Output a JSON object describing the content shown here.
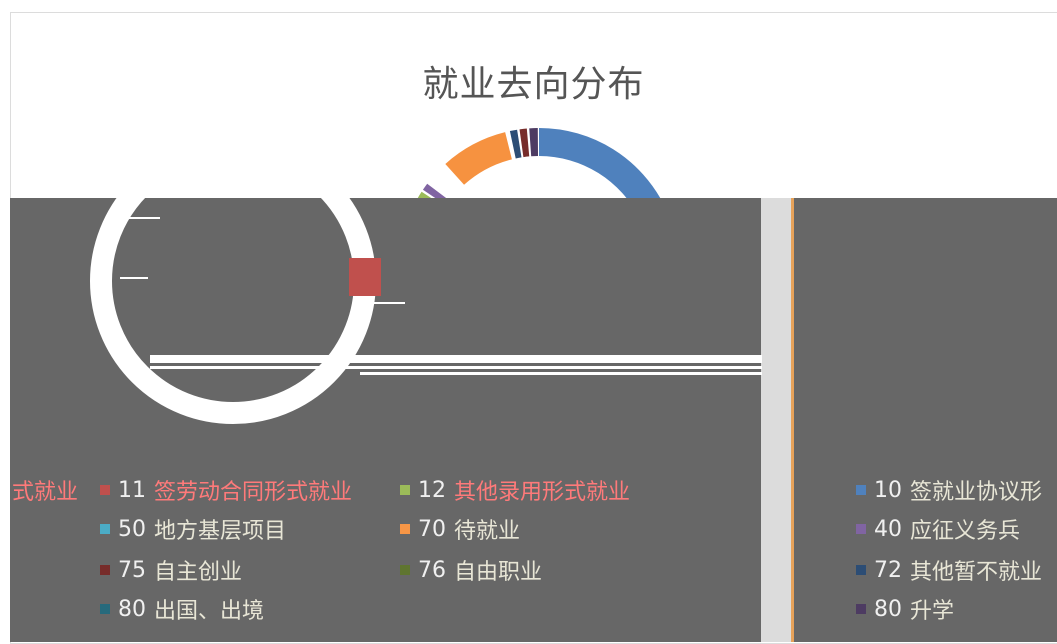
{
  "window": {
    "title": "就业去向分布"
  },
  "colors": {
    "background_band": "#676767",
    "card_border": "#dcdcdc",
    "accent_orange": "#f69240",
    "accent_blue": "#4f81bd",
    "accent_red": "#c0504d"
  },
  "chart_data": {
    "type": "pie",
    "title": "就业去向分布",
    "donut": true,
    "series": [
      {
        "name": "签就业协议形式就业",
        "count": "10",
        "color": "#4f81bd"
      },
      {
        "name": "签劳动合同形式就业",
        "count": "11",
        "color": "#c0504d"
      },
      {
        "name": "其他录用形式就业",
        "count": "12",
        "color": "#9bbb59"
      },
      {
        "name": "应征义务兵",
        "count": "40",
        "color": "#8064a2"
      },
      {
        "name": "地方基层项目",
        "count": "50",
        "color": "#4bacc6"
      },
      {
        "name": "待就业",
        "count": "70",
        "color": "#f79646"
      },
      {
        "name": "其他暂不就业",
        "count": "72",
        "color": "#2c4d75"
      },
      {
        "name": "自主创业",
        "count": "75",
        "color": "#772c2a"
      },
      {
        "name": "自由职业",
        "count": "76",
        "color": "#5f7530"
      },
      {
        "name": "升学",
        "count": "80",
        "color": "#4d3b62"
      },
      {
        "name": "出国、出境",
        "count": "80",
        "color": "#276a7c"
      }
    ]
  },
  "legend": {
    "cut_left_label": "式就业",
    "rows": [
      {
        "count": "11",
        "label": "签劳动合同形式就业",
        "color": "#c0504d"
      },
      {
        "count": "12",
        "label": "其他录用形式就业",
        "color": "#9bbb59"
      },
      {
        "count": "50",
        "label": "地方基层项目",
        "color": "#4bacc6"
      },
      {
        "count": "70",
        "label": "待就业",
        "color": "#f79646"
      },
      {
        "count": "75",
        "label": "自主创业",
        "color": "#772c2a"
      },
      {
        "count": "76",
        "label": "自由职业",
        "color": "#5f7530"
      },
      {
        "count": "80",
        "label": "出国、出境",
        "color": "#276a7c"
      },
      {
        "count": "10",
        "label": "签就业协议形",
        "color": "#4f81bd"
      },
      {
        "count": "40",
        "label": "应征义务兵",
        "color": "#8064a2"
      },
      {
        "count": "72",
        "label": "其他暂不就业",
        "color": "#2c4d75"
      },
      {
        "count": "80",
        "label": "升学",
        "color": "#4d3b62"
      }
    ]
  }
}
